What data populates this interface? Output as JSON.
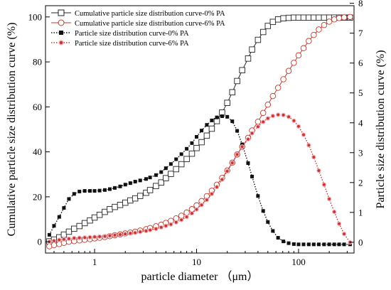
{
  "chart_data": {
    "type": "line",
    "xlabel": "particle diameter （μm）",
    "ylabel_left": "Cumulative particle size distribution curve (%)",
    "ylabel_right": "Particle size distribution curve (%)",
    "x_scale": "log",
    "xlim": [
      0.33,
      350
    ],
    "x_ticks": [
      1,
      10,
      100
    ],
    "x_tick_labels": [
      "1",
      "10",
      "100"
    ],
    "ylim_left": [
      -5,
      105
    ],
    "y_ticks_left": [
      0,
      20,
      40,
      60,
      80,
      100
    ],
    "ylim_right": [
      -0.36,
      7.92
    ],
    "y_ticks_right": [
      0,
      1,
      2,
      3,
      4,
      5,
      6,
      7,
      8
    ],
    "grid": false,
    "legend_position": "top-left",
    "x": [
      0.36,
      0.4,
      0.45,
      0.5,
      0.56,
      0.63,
      0.71,
      0.8,
      0.9,
      1.0,
      1.12,
      1.26,
      1.41,
      1.58,
      1.78,
      2.0,
      2.24,
      2.5,
      2.8,
      3.2,
      3.5,
      4.0,
      4.5,
      5.0,
      5.6,
      6.3,
      7.1,
      8.0,
      9.0,
      10.0,
      11.2,
      12.6,
      14.1,
      15.8,
      17.8,
      20.0,
      22.4,
      25.0,
      28.0,
      32.0,
      35.0,
      40.0,
      45.0,
      50.0,
      56.0,
      63.0,
      71.0,
      80.0,
      90.0,
      100.0,
      112.0,
      126.0,
      141.0,
      158.0,
      178.0,
      200.0,
      224.0,
      250.0,
      280.0,
      320.0
    ],
    "series": [
      {
        "name": "Cumulative particle size distribution curve-0% PA",
        "axis": "left",
        "marker": "open-square",
        "color": "#222222",
        "line_style": "solid",
        "values": [
          0.2,
          1.0,
          2.0,
          3.2,
          4.5,
          5.8,
          7.0,
          8.3,
          9.5,
          10.8,
          12.0,
          13.3,
          14.5,
          15.5,
          16.4,
          17.4,
          18.4,
          19.3,
          20.4,
          21.8,
          23.0,
          24.8,
          26.4,
          28.3,
          30.2,
          32.3,
          34.5,
          36.8,
          39.2,
          41.7,
          44.3,
          47.2,
          50.3,
          53.7,
          57.5,
          61.8,
          66.5,
          71.5,
          76.3,
          81.5,
          85.5,
          89.8,
          93.3,
          96.0,
          97.8,
          98.9,
          99.4,
          99.6,
          99.7,
          99.7,
          99.7,
          99.7,
          99.7,
          99.7,
          99.7,
          99.7,
          99.7,
          99.7,
          99.7,
          99.7
        ]
      },
      {
        "name": "Cumulative particle size distribution curve-6% PA",
        "axis": "left",
        "marker": "open-circle",
        "color": "#c0392b",
        "line_style": "solid",
        "values": [
          -2.0,
          -1.5,
          -1.0,
          -0.5,
          0.0,
          0.3,
          0.6,
          0.9,
          1.2,
          1.5,
          1.8,
          2.1,
          2.5,
          2.9,
          3.3,
          3.7,
          4.1,
          4.5,
          5.0,
          5.6,
          6.1,
          6.9,
          7.6,
          8.4,
          9.3,
          10.4,
          11.6,
          13.0,
          14.5,
          16.2,
          18.1,
          20.3,
          22.7,
          25.4,
          28.4,
          31.7,
          35.2,
          38.8,
          42.3,
          46.2,
          49.5,
          53.4,
          57.3,
          61.0,
          64.8,
          68.5,
          72.3,
          76.0,
          79.6,
          82.9,
          86.1,
          89.3,
          92.0,
          94.4,
          96.4,
          97.9,
          98.9,
          99.5,
          99.8,
          100.0
        ]
      },
      {
        "name": "Particle size distribution curve-0% PA",
        "axis": "right",
        "marker": "filled-square",
        "color": "#111111",
        "line_style": "dotted",
        "values": [
          0.25,
          0.55,
          0.85,
          1.15,
          1.45,
          1.62,
          1.7,
          1.72,
          1.72,
          1.72,
          1.73,
          1.75,
          1.78,
          1.82,
          1.87,
          1.93,
          1.98,
          2.03,
          2.07,
          2.12,
          2.17,
          2.25,
          2.35,
          2.48,
          2.62,
          2.78,
          2.95,
          3.13,
          3.32,
          3.53,
          3.74,
          3.93,
          4.08,
          4.18,
          4.22,
          4.2,
          4.05,
          3.73,
          3.28,
          2.65,
          2.2,
          1.55,
          1.05,
          0.68,
          0.38,
          0.15,
          0.03,
          -0.03,
          -0.06,
          -0.07,
          -0.07,
          -0.07,
          -0.07,
          -0.07,
          -0.07,
          -0.07,
          -0.07,
          -0.07,
          -0.07,
          -0.07
        ]
      },
      {
        "name": "Particle size distribution curve-6% PA",
        "axis": "right",
        "marker": "filled-circle",
        "color": "#c0392b",
        "line_style": "dotted",
        "values": [
          0.02,
          0.05,
          0.08,
          0.1,
          0.12,
          0.14,
          0.15,
          0.16,
          0.17,
          0.18,
          0.19,
          0.2,
          0.22,
          0.24,
          0.26,
          0.28,
          0.3,
          0.32,
          0.35,
          0.38,
          0.41,
          0.45,
          0.5,
          0.55,
          0.6,
          0.67,
          0.75,
          0.85,
          0.97,
          1.1,
          1.25,
          1.42,
          1.62,
          1.85,
          2.1,
          2.38,
          2.66,
          2.94,
          3.2,
          3.45,
          3.65,
          3.87,
          4.03,
          4.15,
          4.23,
          4.27,
          4.26,
          4.2,
          4.07,
          3.88,
          3.6,
          3.25,
          2.85,
          2.4,
          1.93,
          1.45,
          1.02,
          0.62,
          0.28,
          0.0
        ]
      }
    ]
  }
}
